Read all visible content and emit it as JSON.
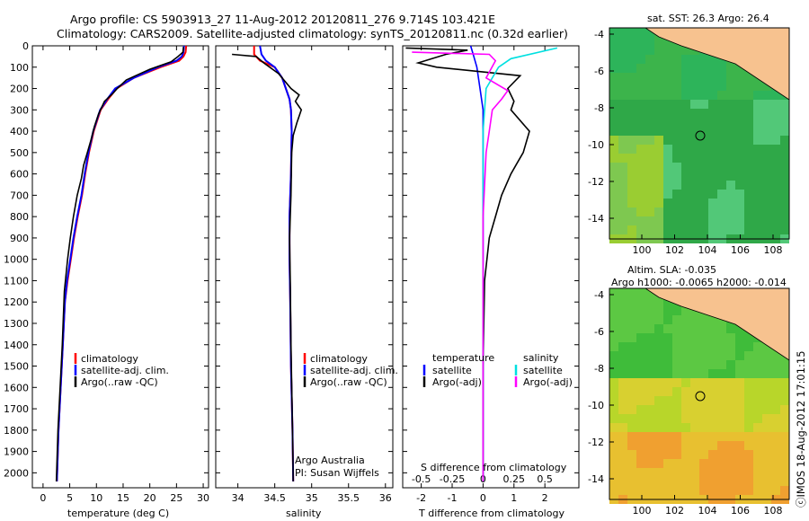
{
  "header": {
    "line1": "Argo profile: CS 5903913_27 11-Aug-2012 20120811_276 9.714S 103.421E",
    "line2": "Climatology: CARS2009. Satellite-adjusted climatology: synTS_20120811.nc (0.32d earlier)"
  },
  "colors": {
    "climatology": "#ff0000",
    "satellite": "#0000ff",
    "argo": "#000000",
    "sat_salinity": "#00e0e0",
    "argo_salinity_adj": "#ff00ff",
    "land": "#f7c28f",
    "ocean_green": "#2faa3c"
  },
  "chart_data": [
    {
      "type": "line",
      "xlabel": "temperature (deg C)",
      "ylabel": "",
      "xlim": [
        -2,
        31
      ],
      "ylim": [
        2070,
        0
      ],
      "xticks": [
        "0",
        "5",
        "10",
        "15",
        "20",
        "25",
        "30"
      ],
      "yticks": [
        "0",
        "100",
        "200",
        "300",
        "400",
        "500",
        "600",
        "700",
        "800",
        "900",
        "1000",
        "1100",
        "1200",
        "1300",
        "1400",
        "1500",
        "1600",
        "1700",
        "1800",
        "1900",
        "2000"
      ],
      "legend": [
        "climatology",
        "satellite-adj. clim.",
        "Argo(..raw -QC)"
      ],
      "series": [
        {
          "name": "climatology",
          "x": [
            26.8,
            26.7,
            26.3,
            25.5,
            22,
            17,
            13.8,
            12.2,
            10.8,
            9.5,
            8.6,
            7.9,
            7.3,
            6.5,
            5.8,
            5.2,
            4.6,
            4.1,
            3.7,
            3.3,
            2.9,
            2.6
          ],
          "y": [
            0,
            30,
            50,
            70,
            100,
            150,
            200,
            250,
            300,
            400,
            500,
            600,
            700,
            800,
            900,
            1000,
            1100,
            1200,
            1400,
            1600,
            1800,
            2040
          ]
        },
        {
          "name": "satellite-adj. clim.",
          "x": [
            26.4,
            26.3,
            26,
            25,
            21.5,
            17,
            13.5,
            12,
            10.7,
            9.4,
            8.5,
            7.8,
            7.2,
            6.4,
            5.7,
            5.1,
            4.5,
            4.1,
            3.7,
            3.3,
            2.9,
            2.6
          ],
          "y": [
            0,
            30,
            50,
            70,
            100,
            150,
            200,
            250,
            300,
            400,
            500,
            600,
            700,
            800,
            900,
            1000,
            1100,
            1200,
            1400,
            1600,
            1800,
            2040
          ]
        },
        {
          "name": "Argo(..raw -QC)",
          "x": [
            26.3,
            26.2,
            25.3,
            24,
            20,
            15.6,
            13.9,
            13,
            11.5,
            10.4,
            9.6,
            9,
            8.3,
            7.6,
            7.2,
            6.4,
            5.7,
            5.1,
            4.6,
            4,
            3.6,
            3.2,
            2.8,
            2.5
          ],
          "y": [
            5,
            30,
            50,
            75,
            110,
            160,
            200,
            225,
            260,
            320,
            380,
            440,
            500,
            560,
            620,
            700,
            800,
            900,
            1000,
            1150,
            1400,
            1600,
            1800,
            2040
          ]
        }
      ]
    },
    {
      "type": "line",
      "xlabel": "salinity",
      "xlim": [
        33.7,
        36.1
      ],
      "ylim": [
        2070,
        0
      ],
      "xticks": [
        "34",
        "34.5",
        "35",
        "35.5",
        "36"
      ],
      "legend": [
        "climatology",
        "satellite-adj. clim.",
        "Argo(..raw -QC)"
      ],
      "annotation": [
        "Argo Australia",
        "PI: Susan Wijffels"
      ],
      "series": [
        {
          "name": "climatology",
          "x": [
            34.22,
            34.22,
            34.3,
            34.5,
            34.6,
            34.65,
            34.7,
            34.72,
            34.73,
            34.72,
            34.7,
            34.7,
            34.71,
            34.72,
            34.74,
            34.75
          ],
          "y": [
            0,
            40,
            70,
            100,
            150,
            200,
            250,
            300,
            400,
            600,
            800,
            1000,
            1200,
            1500,
            1800,
            2040
          ]
        },
        {
          "name": "satellite-adj. clim.",
          "x": [
            34.3,
            34.32,
            34.38,
            34.5,
            34.6,
            34.65,
            34.7,
            34.72,
            34.73,
            34.72,
            34.7,
            34.7,
            34.71,
            34.72,
            34.74,
            34.75
          ],
          "y": [
            0,
            40,
            70,
            100,
            150,
            200,
            250,
            300,
            400,
            600,
            800,
            1000,
            1200,
            1500,
            1800,
            2040
          ]
        },
        {
          "name": "Argo(..raw -QC)",
          "x": [
            33.92,
            34.25,
            34.35,
            34.55,
            34.72,
            34.83,
            34.78,
            34.86,
            34.8,
            34.75,
            34.73,
            34.72,
            34.7,
            34.71,
            34.72,
            34.74,
            34.75
          ],
          "y": [
            40,
            50,
            80,
            130,
            200,
            230,
            260,
            300,
            360,
            420,
            500,
            700,
            900,
            1100,
            1400,
            1800,
            2040
          ]
        }
      ]
    },
    {
      "type": "line",
      "xlabel": "T difference from climatology",
      "title2": "S difference from climatology",
      "xlim": [
        -2.6,
        3.1
      ],
      "ylim": [
        2070,
        0
      ],
      "xticks": [
        "-2",
        "-1",
        "0",
        "1",
        "2"
      ],
      "xticks_top": [
        "-0.5",
        "-0.25",
        "0",
        "0.25",
        "0.5"
      ],
      "legend": [
        "temperature",
        "satellite",
        "Argo(-adj)",
        "salinity",
        "satellite",
        "Argo(-adj)"
      ],
      "series": [
        {
          "name": "temperature satellite",
          "x": [
            -0.4,
            -0.3,
            -0.2,
            -0.1,
            0,
            0,
            0,
            0
          ],
          "y": [
            0,
            50,
            100,
            200,
            300,
            600,
            1200,
            2040
          ]
        },
        {
          "name": "temperature Argo(-adj)",
          "x": [
            -2.5,
            -0.5,
            -1.2,
            -2.1,
            -1.5,
            1.2,
            0.8,
            1.0,
            0.9,
            1.5,
            1.3,
            1.1,
            0.9,
            0.6,
            0.4,
            0.2,
            0.05,
            0,
            0
          ],
          "y": [
            10,
            20,
            40,
            80,
            100,
            140,
            200,
            260,
            300,
            400,
            500,
            550,
            600,
            700,
            800,
            900,
            1100,
            1500,
            2040
          ]
        },
        {
          "name": "salinity satellite",
          "x": [
            2.4,
            0.9,
            0.5,
            0.1,
            0,
            0,
            0,
            0
          ],
          "y": [
            10,
            60,
            100,
            200,
            400,
            800,
            1400,
            2040
          ]
        },
        {
          "name": "salinity Argo(-adj)",
          "x": [
            -2.3,
            0.2,
            0.4,
            0.1,
            0.8,
            0.6,
            0.3,
            0.2,
            0.1,
            0,
            0,
            0
          ],
          "y": [
            30,
            40,
            70,
            150,
            210,
            250,
            300,
            400,
            500,
            800,
            1500,
            2040
          ]
        }
      ]
    }
  ],
  "maps": [
    {
      "title": "sat. SST: 26.3 Argo: 26.4",
      "yticks": [
        "-4",
        "-6",
        "-8",
        "-10",
        "-12",
        "-14"
      ],
      "xticks": [
        "100",
        "102",
        "104",
        "106",
        "108"
      ]
    },
    {
      "title": "Altim. SLA: -0.035",
      "title2": "Argo h1000: -0.0065 h2000: -0.014",
      "yticks": [
        "-4",
        "-6",
        "-8",
        "-10",
        "-12",
        "-14"
      ],
      "xticks": [
        "100",
        "102",
        "104",
        "106",
        "108"
      ]
    }
  ],
  "footer": {
    "credit": "ⓒIMOS 18-Aug-2012 17:01:15"
  }
}
